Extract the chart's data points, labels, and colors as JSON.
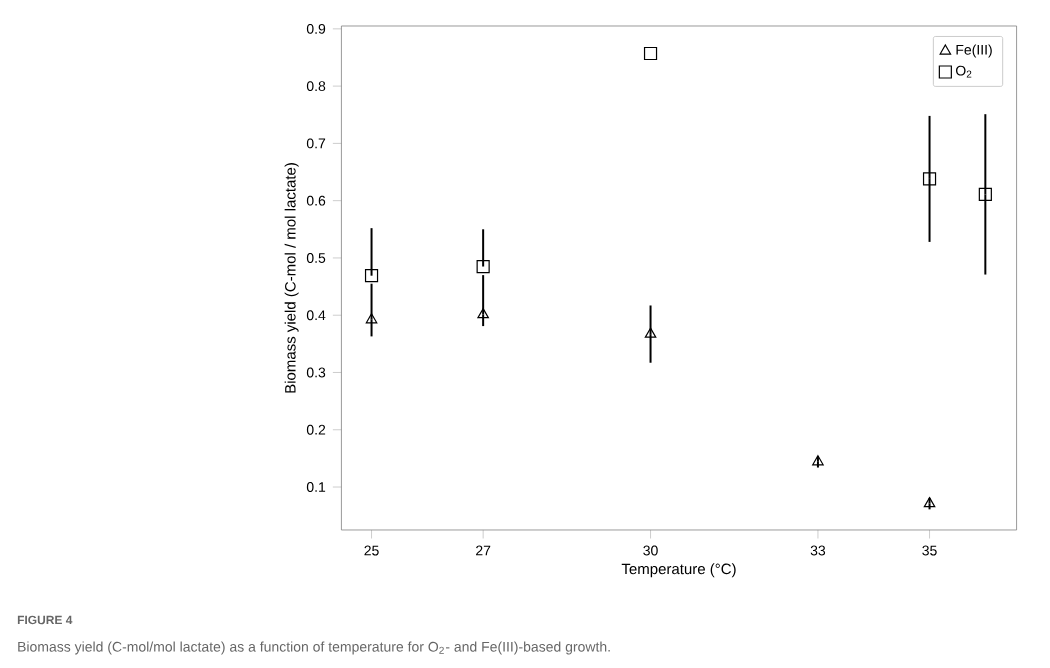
{
  "chart_data": {
    "type": "scatter",
    "xlabel": "Temperature (°C)",
    "ylabel": "Biomass yield (C-mol / mol lactate)",
    "annotations": [
      "FIGURE 4",
      "Biomass yield (C-mol/mol lactate) as a function of temperature for O$_{2}$- and Fe(III)-based growth."
    ],
    "xlim": [
      24.46,
      36.56
    ],
    "ylim": [
      0.025,
      0.905
    ],
    "xticks": [
      25,
      27,
      30,
      33,
      35
    ],
    "yticks": [
      0.1,
      0.2,
      0.3,
      0.4,
      0.5,
      0.6,
      0.7,
      0.8,
      0.9
    ],
    "legend": "top right",
    "grid": false,
    "series": [
      {
        "name": "Fe(III)",
        "color": "#000000",
        "marker": "triangle",
        "x": [
          25,
          27,
          30,
          33,
          35
        ],
        "values": [
          0.392,
          0.401,
          0.367,
          0.144,
          0.071
        ],
        "errors": [
          [
            0.363,
            0.455
          ],
          [
            0.381,
            0.47
          ],
          0.05,
          0.01,
          0.01
        ]
      },
      {
        "name": "O$_{2}$",
        "color": "#000000",
        "marker": "square",
        "x": [
          25,
          27,
          30,
          35,
          36
        ],
        "values": [
          0.469,
          0.485,
          0.857,
          0.638,
          0.611
        ],
        "errors": [
          [
            0.469,
            0.552
          ],
          [
            0.485,
            0.55
          ],
          null,
          0.11,
          0.14
        ]
      }
    ]
  }
}
